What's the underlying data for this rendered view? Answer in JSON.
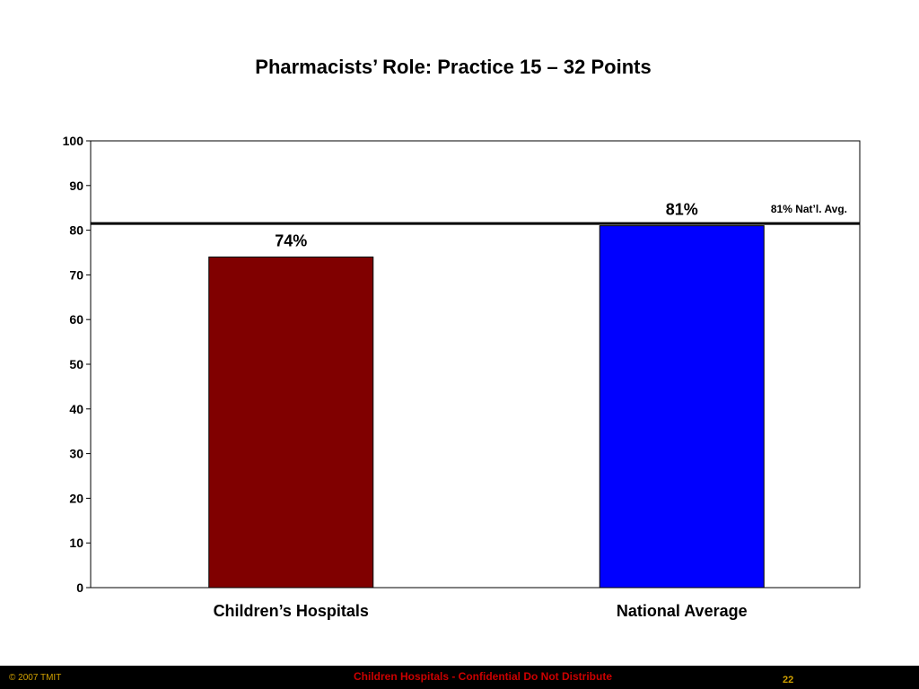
{
  "slide": {
    "title": "Pharmacists’ Role: Practice 15 – 32 Points"
  },
  "chart_data": {
    "type": "bar",
    "categories": [
      "Children’s Hospitals",
      "National Average"
    ],
    "values": [
      74,
      81
    ],
    "value_labels": [
      "74%",
      "81%"
    ],
    "bar_colors": [
      "#800000",
      "#0000ff"
    ],
    "ylim": [
      0,
      100
    ],
    "yticks": [
      0,
      10,
      20,
      30,
      40,
      50,
      60,
      70,
      80,
      90,
      100
    ],
    "grid": false,
    "reference_line": {
      "value": 81.5,
      "label": "81% Nat’l. Avg."
    }
  },
  "footer": {
    "copyright": "© 2007 TMIT",
    "notice": "Children Hospitals - Confidential Do Not Distribute",
    "page_number": "22"
  }
}
